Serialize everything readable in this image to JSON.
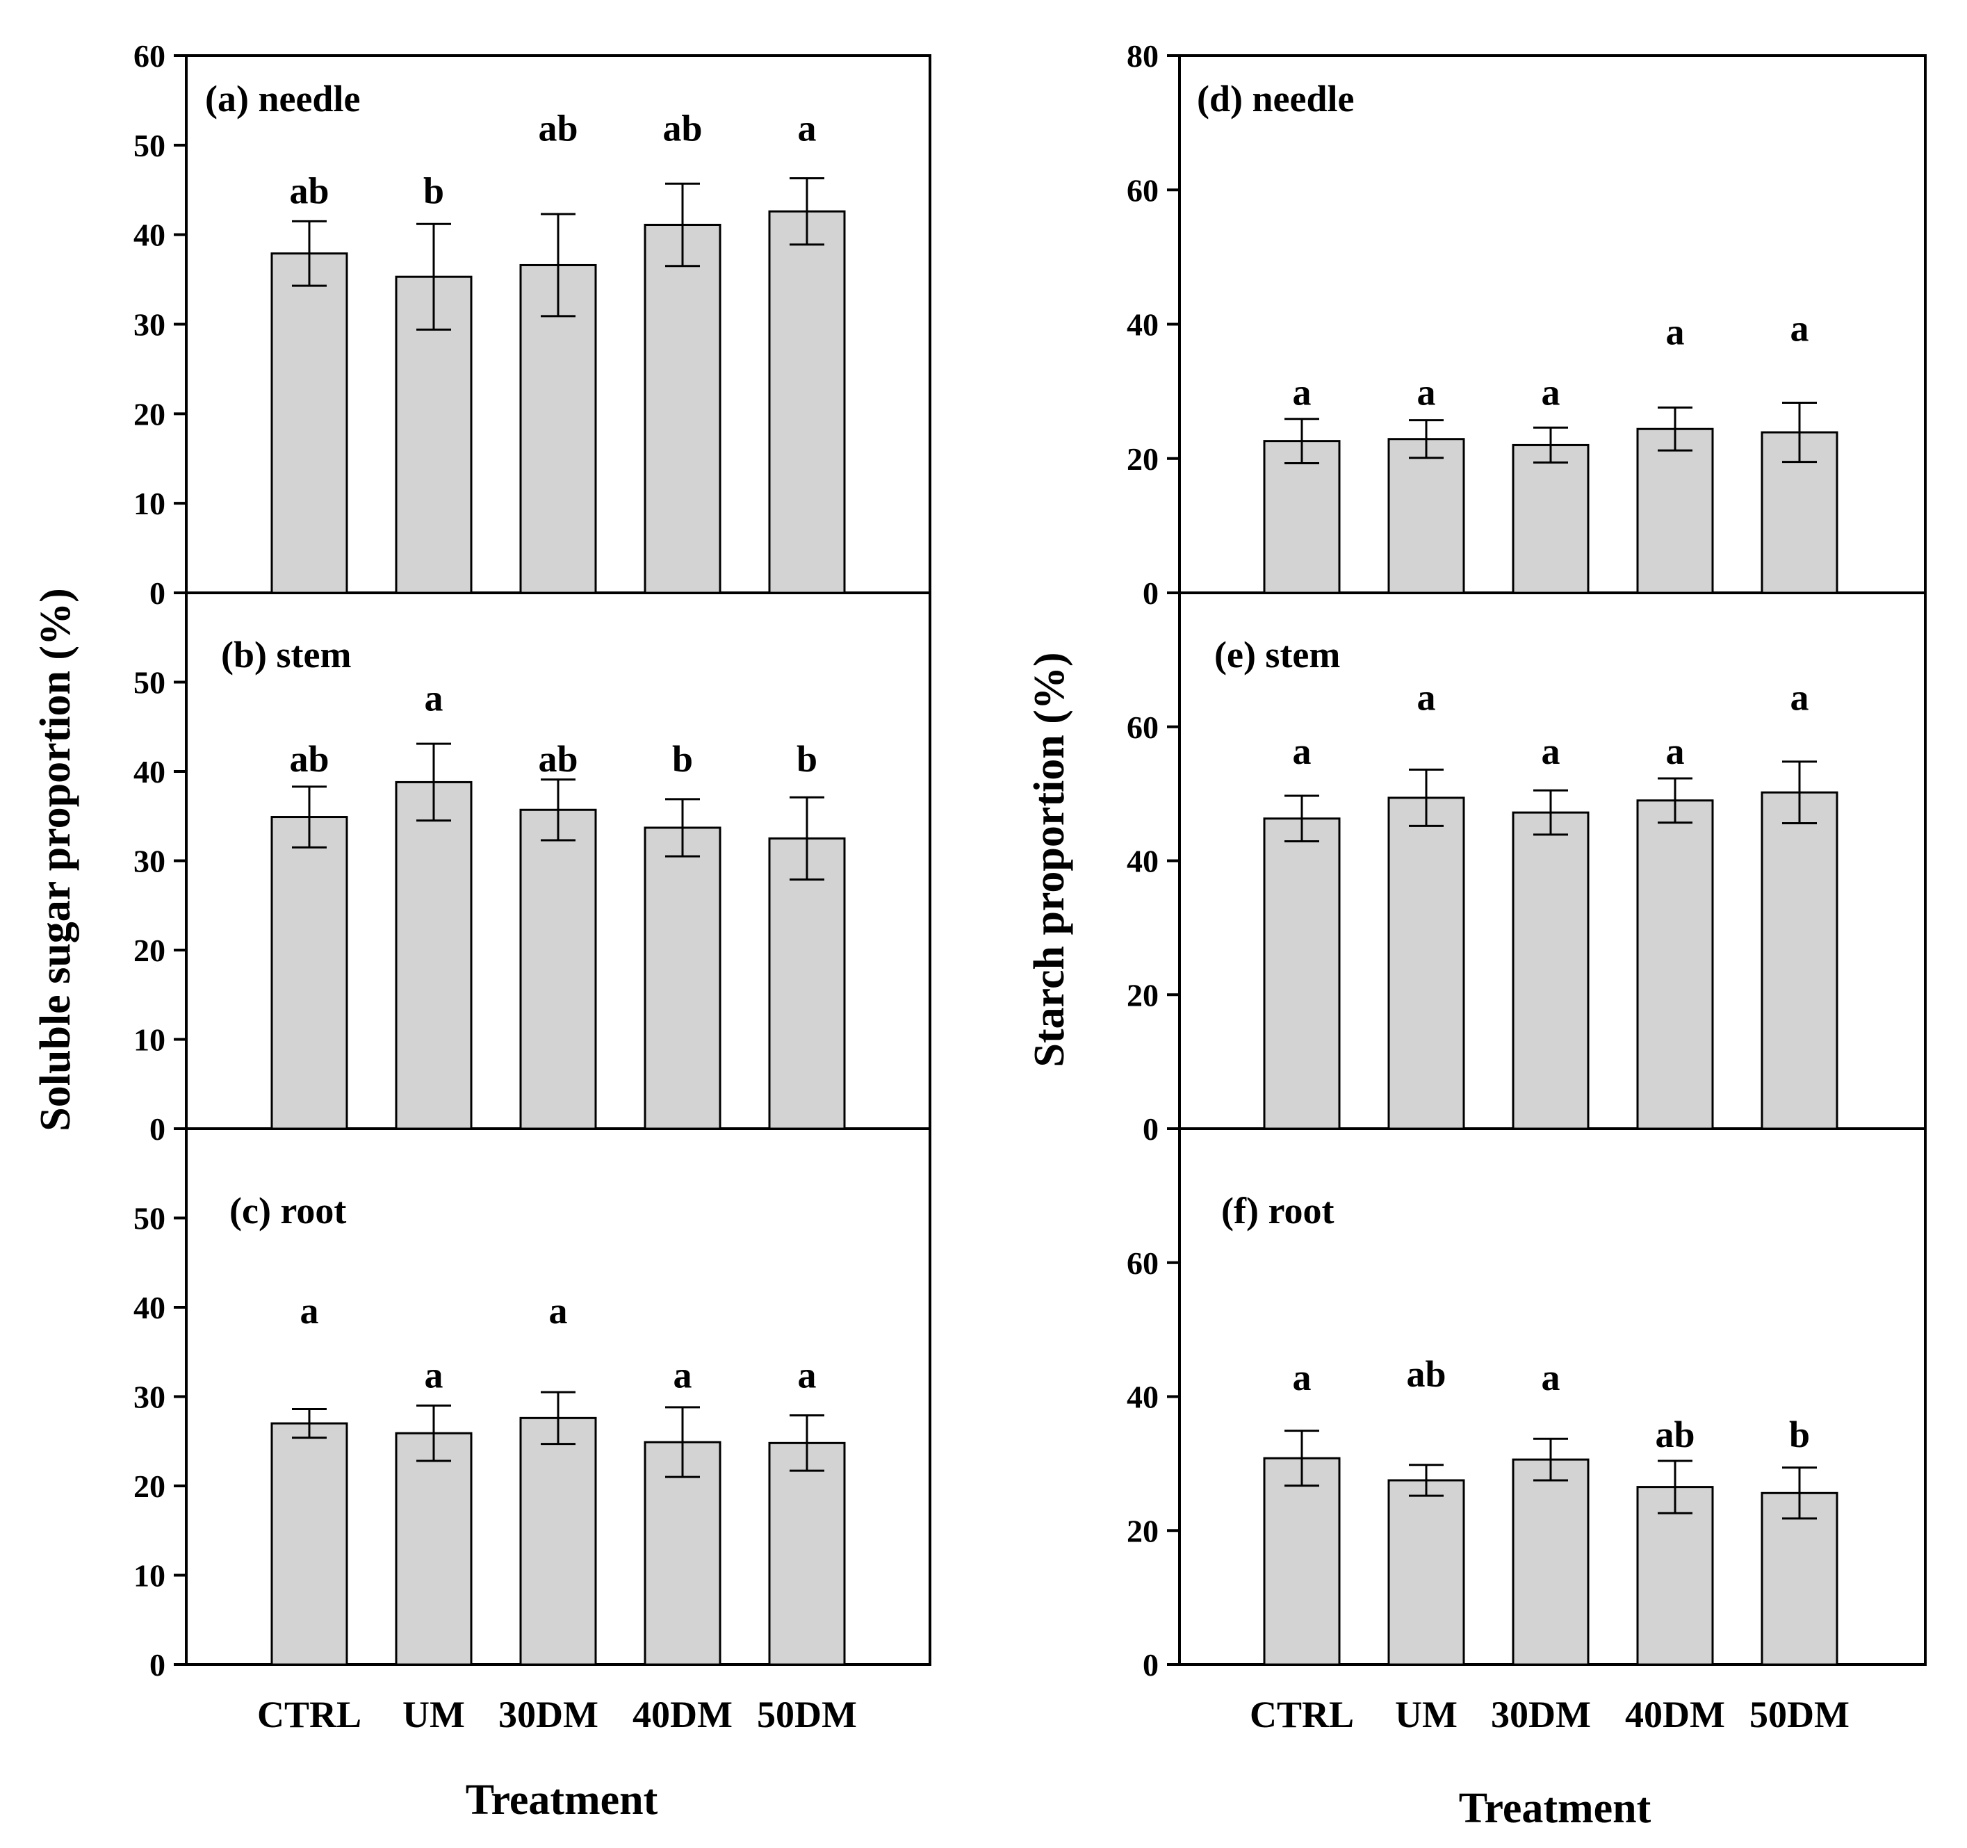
{
  "colors": {
    "bar_fill": "#d3d3d3",
    "stroke": "#000000",
    "background": "#ffffff"
  },
  "chart_data": [
    {
      "type": "bar",
      "panel": "a",
      "title": "(a) needle",
      "categories": [
        "CTRL",
        "UM",
        "30DM",
        "40DM",
        "50DM"
      ],
      "values": [
        37.9,
        35.3,
        36.6,
        41.1,
        42.6
      ],
      "errors": [
        3.6,
        5.9,
        5.7,
        4.6,
        3.7
      ],
      "letters": [
        "ab",
        "b",
        "ab",
        "ab",
        "a"
      ],
      "letter_values": [
        43.5,
        43.5,
        50.5,
        50.5,
        50.5
      ],
      "ylim": [
        0,
        60
      ],
      "yticks": [
        "0",
        "10",
        "20",
        "30",
        "40",
        "50",
        "60"
      ],
      "ylabel": "Soluble sugar proportion (%)",
      "xlabel": "Treatment"
    },
    {
      "type": "bar",
      "panel": "b",
      "title": "(b) stem",
      "categories": [
        "CTRL",
        "UM",
        "30DM",
        "40DM",
        "50DM"
      ],
      "values": [
        34.9,
        38.8,
        35.7,
        33.7,
        32.5
      ],
      "errors": [
        3.4,
        4.3,
        3.4,
        3.2,
        4.6
      ],
      "letters": [
        "ab",
        "a",
        "ab",
        "b",
        "b"
      ],
      "letter_values": [
        40.0,
        46.8,
        40.0,
        40.0,
        40.0
      ],
      "ylim": [
        0,
        60
      ],
      "yticks": [
        "0",
        "10",
        "20",
        "30",
        "40",
        "50"
      ]
    },
    {
      "type": "bar",
      "panel": "c",
      "title": "(c) root",
      "categories": [
        "CTRL",
        "UM",
        "30DM",
        "40DM",
        "50DM"
      ],
      "values": [
        27.0,
        25.9,
        27.6,
        24.9,
        24.8
      ],
      "errors": [
        1.6,
        3.1,
        2.9,
        3.9,
        3.1
      ],
      "letters": [
        "a",
        "a",
        "a",
        "a",
        "a"
      ],
      "letter_values": [
        38.2,
        31.0,
        38.2,
        31.0,
        31.0
      ],
      "ylim": [
        0,
        60
      ],
      "yticks": [
        "0",
        "10",
        "20",
        "30",
        "40",
        "50"
      ]
    },
    {
      "type": "bar",
      "panel": "d",
      "title": "(d) needle",
      "categories": [
        "CTRL",
        "UM",
        "30DM",
        "40DM",
        "50DM"
      ],
      "values": [
        22.6,
        22.9,
        22.0,
        24.4,
        23.9
      ],
      "errors": [
        3.3,
        2.8,
        2.6,
        3.2,
        4.4
      ],
      "letters": [
        "a",
        "a",
        "a",
        "a",
        "a"
      ],
      "letter_values": [
        28.0,
        28.0,
        28.0,
        37.0,
        37.5
      ],
      "ylim": [
        0,
        80
      ],
      "yticks": [
        "0",
        "20",
        "40",
        "60",
        "80"
      ],
      "ylabel": "Starch proportion (%)",
      "xlabel": "Treatment"
    },
    {
      "type": "bar",
      "panel": "e",
      "title": "(e) stem",
      "categories": [
        "CTRL",
        "UM",
        "30DM",
        "40DM",
        "50DM"
      ],
      "values": [
        46.3,
        49.4,
        47.2,
        49.0,
        50.2
      ],
      "errors": [
        3.4,
        4.2,
        3.3,
        3.3,
        4.6
      ],
      "letters": [
        "a",
        "a",
        "a",
        "a",
        "a"
      ],
      "letter_values": [
        54.5,
        62.5,
        54.5,
        54.5,
        62.5
      ],
      "ylim": [
        0,
        80
      ],
      "yticks": [
        "0",
        "20",
        "40",
        "60"
      ]
    },
    {
      "type": "bar",
      "panel": "f",
      "title": "(f) root",
      "categories": [
        "CTRL",
        "UM",
        "30DM",
        "40DM",
        "50DM"
      ],
      "values": [
        30.8,
        27.5,
        30.6,
        26.5,
        25.6
      ],
      "errors": [
        4.1,
        2.3,
        3.1,
        3.9,
        3.8
      ],
      "letters": [
        "a",
        "ab",
        "a",
        "ab",
        "b"
      ],
      "letter_values": [
        41.0,
        41.5,
        41.0,
        32.5,
        32.5
      ],
      "ylim": [
        0,
        80
      ],
      "yticks": [
        "0",
        "20",
        "40",
        "60"
      ]
    }
  ]
}
